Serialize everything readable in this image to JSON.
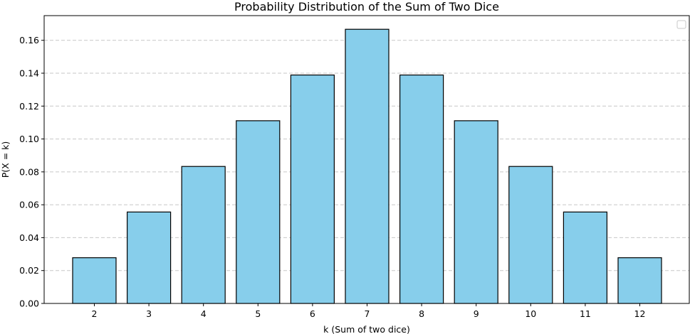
{
  "chart_data": {
    "type": "bar",
    "title": "Probability Distribution of the Sum of Two Dice",
    "xlabel": "k (Sum of two dice)",
    "ylabel": "P(X = k)",
    "categories": [
      "2",
      "3",
      "4",
      "5",
      "6",
      "7",
      "8",
      "9",
      "10",
      "11",
      "12"
    ],
    "values": [
      0.0278,
      0.0556,
      0.0833,
      0.1111,
      0.1389,
      0.1667,
      0.1389,
      0.1111,
      0.0833,
      0.0556,
      0.0278
    ],
    "ylim": [
      0,
      0.175
    ],
    "yticks": [
      "0.00",
      "0.02",
      "0.04",
      "0.06",
      "0.08",
      "0.10",
      "0.12",
      "0.14",
      "0.16"
    ],
    "grid": "y-dashed",
    "legend": "upper-right-empty",
    "bar_color": "#87ceeb",
    "edge_color": "#000000"
  }
}
